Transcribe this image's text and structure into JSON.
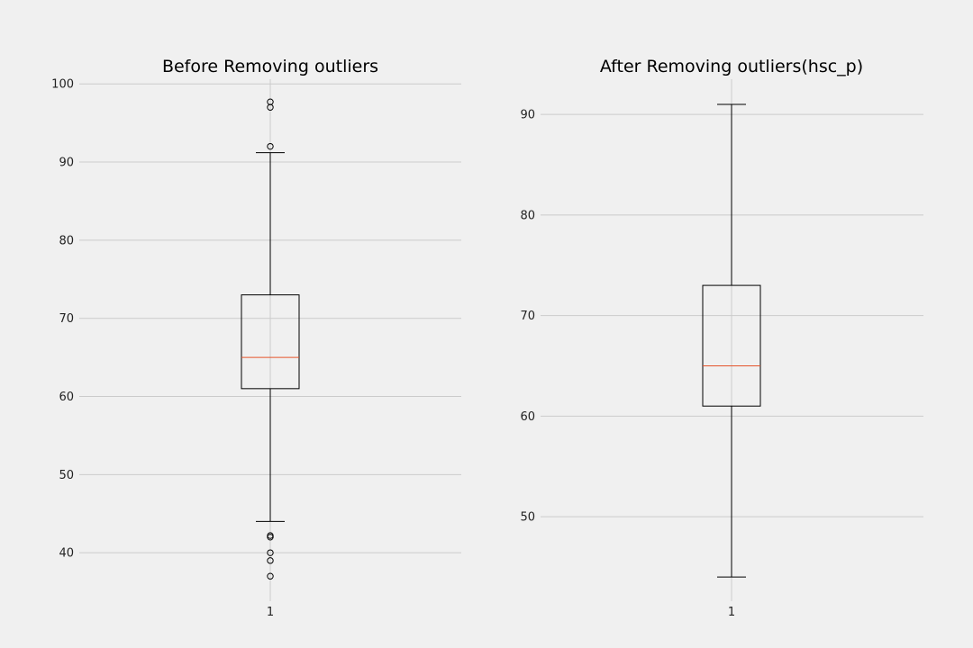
{
  "chart_data": [
    {
      "type": "box",
      "title": "Before Removing outliers",
      "categories": [
        "1"
      ],
      "yticks": [
        40,
        50,
        60,
        70,
        80,
        90,
        100
      ],
      "ylim": [
        33.8,
        100.6
      ],
      "grid": "horizontal",
      "colors": {
        "box": "#000000",
        "median": "#e5542b",
        "grid": "#cbcbcb",
        "background": "#f0f0f0"
      },
      "box": {
        "whisker_low": 44,
        "q1": 61,
        "median": 65,
        "q3": 73,
        "whisker_high": 91.2,
        "outliers": [
          97.7,
          97.0,
          92.0,
          42.2,
          42.0,
          40.0,
          39.0,
          37.0
        ]
      }
    },
    {
      "type": "box",
      "title": "After Removing outliers(hsc_p)",
      "categories": [
        "1"
      ],
      "yticks": [
        50,
        60,
        70,
        80,
        90
      ],
      "ylim": [
        41.6,
        93.5
      ],
      "grid": "horizontal",
      "colors": {
        "box": "#000000",
        "median": "#e5542b",
        "grid": "#cbcbcb",
        "background": "#f0f0f0"
      },
      "box": {
        "whisker_low": 44,
        "q1": 61,
        "median": 65,
        "q3": 73,
        "whisker_high": 91,
        "outliers": []
      }
    }
  ]
}
